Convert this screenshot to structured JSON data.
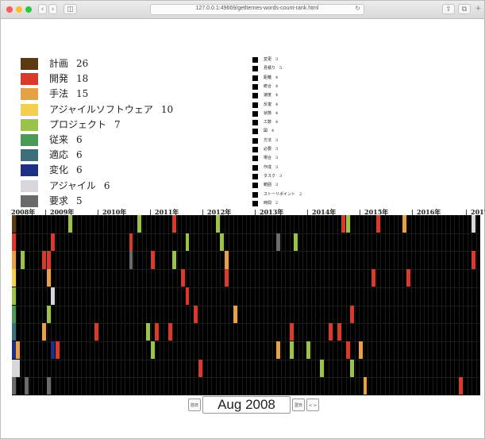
{
  "browser": {
    "url": "127.0.0.1:49669/getlternes-words-count-rank.html"
  },
  "main_legend": [
    {
      "label": "計画",
      "count": "26",
      "color": "#5b3a13"
    },
    {
      "label": "開発",
      "count": "18",
      "color": "#d93a2b"
    },
    {
      "label": "手法",
      "count": "15",
      "color": "#e8a045"
    },
    {
      "label": "アジャイルソフトウェア",
      "count": "10",
      "color": "#f4cf4f"
    },
    {
      "label": "プロジェクト",
      "count": "7",
      "color": "#9cc349"
    },
    {
      "label": "従来",
      "count": "6",
      "color": "#4a9a58"
    },
    {
      "label": "適応",
      "count": "6",
      "color": "#3d6f7a"
    },
    {
      "label": "変化",
      "count": "6",
      "color": "#1e2f88"
    },
    {
      "label": "アジャイル",
      "count": "6",
      "color": "#d6d6dc"
    },
    {
      "label": "要求",
      "count": "5",
      "color": "#6a6a6a"
    }
  ],
  "small_legend": [
    {
      "label": "変更",
      "count": "3"
    },
    {
      "label": "見積り",
      "count": "5"
    },
    {
      "label": "距離",
      "count": "4"
    },
    {
      "label": "統合",
      "count": "4"
    },
    {
      "label": "速度",
      "count": "4"
    },
    {
      "label": "反復",
      "count": "4"
    },
    {
      "label": "状態",
      "count": "4"
    },
    {
      "label": "工数",
      "count": "4"
    },
    {
      "label": "図",
      "count": "4"
    },
    {
      "label": "方法",
      "count": "3"
    },
    {
      "label": "必要",
      "count": "3"
    },
    {
      "label": "場合",
      "count": "3"
    },
    {
      "label": "作成",
      "count": "3"
    },
    {
      "label": "タスク",
      "count": "3"
    },
    {
      "label": "範囲",
      "count": "3"
    },
    {
      "label": "ストーリポイント",
      "count": "2"
    },
    {
      "label": "時間",
      "count": "2"
    }
  ],
  "year_axis": [
    "2008年",
    "2009年",
    "2010年",
    "2011年",
    "2012年",
    "2013年",
    "2014年",
    "2015年",
    "2016年",
    "2017年"
  ],
  "heatmap": {
    "columns": 108,
    "rows": 10,
    "cells": [
      {
        "row": 0,
        "col": 0,
        "c": 0
      },
      {
        "row": 0,
        "col": 13,
        "c": 4
      },
      {
        "row": 0,
        "col": 29,
        "c": 4
      },
      {
        "row": 0,
        "col": 37,
        "c": 1
      },
      {
        "row": 0,
        "col": 47,
        "c": 4
      },
      {
        "row": 0,
        "col": 76,
        "c": 1
      },
      {
        "row": 0,
        "col": 77,
        "c": 4
      },
      {
        "row": 0,
        "col": 84,
        "c": 1
      },
      {
        "row": 0,
        "col": 90,
        "c": 2
      },
      {
        "row": 0,
        "col": 106,
        "c": 8
      },
      {
        "row": 1,
        "col": 0,
        "c": 1
      },
      {
        "row": 1,
        "col": 9,
        "c": 1
      },
      {
        "row": 1,
        "col": 27,
        "c": 1
      },
      {
        "row": 1,
        "col": 40,
        "c": 4
      },
      {
        "row": 1,
        "col": 48,
        "c": 4
      },
      {
        "row": 1,
        "col": 61,
        "c": 9
      },
      {
        "row": 1,
        "col": 65,
        "c": 4
      },
      {
        "row": 2,
        "col": 0,
        "c": 2
      },
      {
        "row": 2,
        "col": 2,
        "c": 4
      },
      {
        "row": 2,
        "col": 7,
        "c": 1
      },
      {
        "row": 2,
        "col": 8,
        "c": 1
      },
      {
        "row": 2,
        "col": 27,
        "c": 9
      },
      {
        "row": 2,
        "col": 32,
        "c": 1
      },
      {
        "row": 2,
        "col": 37,
        "c": 4
      },
      {
        "row": 2,
        "col": 49,
        "c": 2
      },
      {
        "row": 2,
        "col": 106,
        "c": 1
      },
      {
        "row": 3,
        "col": 0,
        "c": 3
      },
      {
        "row": 3,
        "col": 8,
        "c": 2
      },
      {
        "row": 3,
        "col": 39,
        "c": 1
      },
      {
        "row": 3,
        "col": 49,
        "c": 1
      },
      {
        "row": 3,
        "col": 83,
        "c": 1
      },
      {
        "row": 3,
        "col": 91,
        "c": 1
      },
      {
        "row": 4,
        "col": 0,
        "c": 4
      },
      {
        "row": 4,
        "col": 9,
        "c": 8
      },
      {
        "row": 4,
        "col": 40,
        "c": 1
      },
      {
        "row": 5,
        "col": 0,
        "c": 5
      },
      {
        "row": 5,
        "col": 8,
        "c": 4
      },
      {
        "row": 5,
        "col": 42,
        "c": 1
      },
      {
        "row": 5,
        "col": 51,
        "c": 2
      },
      {
        "row": 5,
        "col": 78,
        "c": 1
      },
      {
        "row": 6,
        "col": 0,
        "c": 6
      },
      {
        "row": 6,
        "col": 7,
        "c": 2
      },
      {
        "row": 6,
        "col": 19,
        "c": 1
      },
      {
        "row": 6,
        "col": 31,
        "c": 4
      },
      {
        "row": 6,
        "col": 33,
        "c": 1
      },
      {
        "row": 6,
        "col": 36,
        "c": 1
      },
      {
        "row": 6,
        "col": 64,
        "c": 1
      },
      {
        "row": 6,
        "col": 73,
        "c": 1
      },
      {
        "row": 6,
        "col": 75,
        "c": 1
      },
      {
        "row": 7,
        "col": 0,
        "c": 7
      },
      {
        "row": 7,
        "col": 1,
        "c": 2
      },
      {
        "row": 7,
        "col": 9,
        "c": 7
      },
      {
        "row": 7,
        "col": 10,
        "c": 1
      },
      {
        "row": 7,
        "col": 32,
        "c": 4
      },
      {
        "row": 7,
        "col": 61,
        "c": 2
      },
      {
        "row": 7,
        "col": 64,
        "c": 4
      },
      {
        "row": 7,
        "col": 68,
        "c": 4
      },
      {
        "row": 7,
        "col": 77,
        "c": 1
      },
      {
        "row": 7,
        "col": 80,
        "c": 2
      },
      {
        "row": 8,
        "col": 0,
        "c": 8
      },
      {
        "row": 8,
        "col": 1,
        "c": 8
      },
      {
        "row": 8,
        "col": 43,
        "c": 1
      },
      {
        "row": 8,
        "col": 71,
        "c": 4
      },
      {
        "row": 8,
        "col": 78,
        "c": 4
      },
      {
        "row": 9,
        "col": 0,
        "c": 9
      },
      {
        "row": 9,
        "col": 3,
        "c": 9
      },
      {
        "row": 9,
        "col": 8,
        "c": 9
      },
      {
        "row": 9,
        "col": 81,
        "c": 2
      },
      {
        "row": 9,
        "col": 103,
        "c": 1
      }
    ]
  },
  "controls": {
    "prev_label": "前日",
    "month": "Aug 2008",
    "next_label": "翌日",
    "extra_label": "< >"
  }
}
